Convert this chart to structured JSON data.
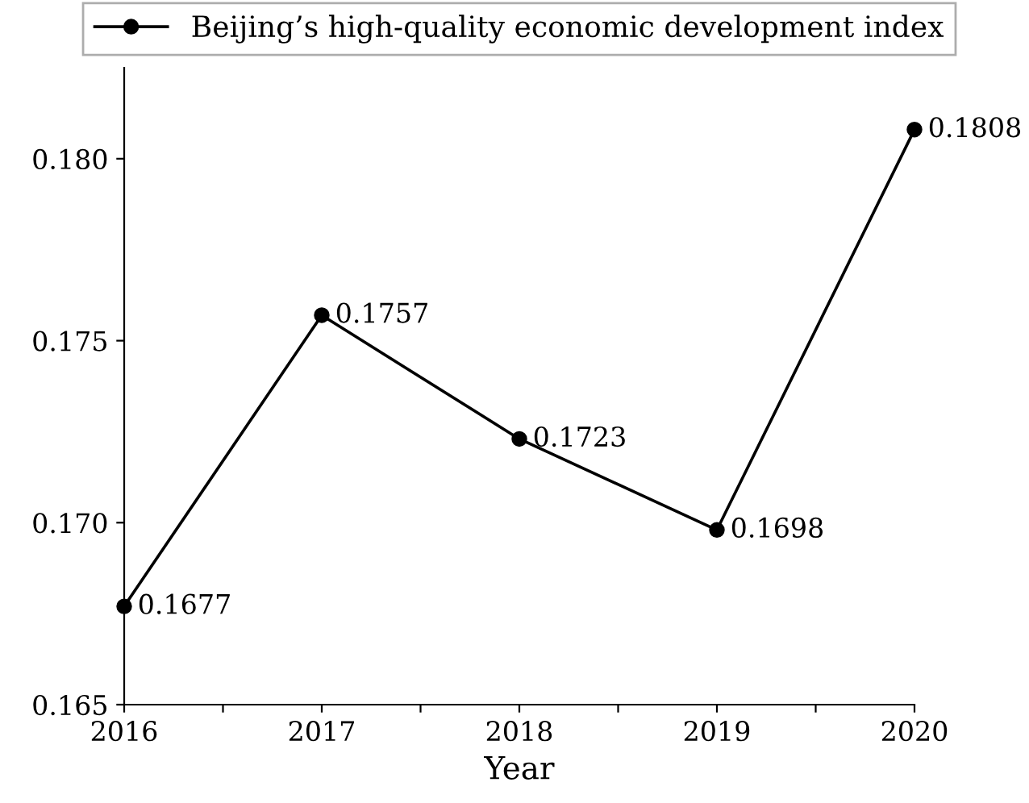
{
  "chart_data": {
    "type": "line",
    "xlabel": "Year",
    "x": [
      2016,
      2017,
      2018,
      2019,
      2020
    ],
    "series": [
      {
        "name": "Beijing’s high-quality economic development index",
        "color": "#000000",
        "values": [
          0.1677,
          0.1757,
          0.1723,
          0.1698,
          0.1808
        ]
      }
    ],
    "xlim": [
      2016,
      2020
    ],
    "xticks": [
      2016,
      {
        "value": 2016.5,
        "label": null
      },
      2017,
      {
        "value": 2017.5,
        "label": null
      },
      2018,
      {
        "value": 2018.5,
        "label": null
      },
      2019,
      {
        "value": 2019.5,
        "label": null
      },
      2020
    ],
    "ylim": [
      0.165,
      0.1825
    ],
    "yticks": [
      {
        "value": 0.165,
        "label": "0.165"
      },
      {
        "value": 0.17,
        "label": "0.170"
      },
      {
        "value": 0.175,
        "label": "0.175"
      },
      {
        "value": 0.18,
        "label": "0.180"
      }
    ],
    "data_labels": true,
    "legend": "top",
    "grid": false,
    "marker": "circle",
    "line_style": "solid"
  }
}
